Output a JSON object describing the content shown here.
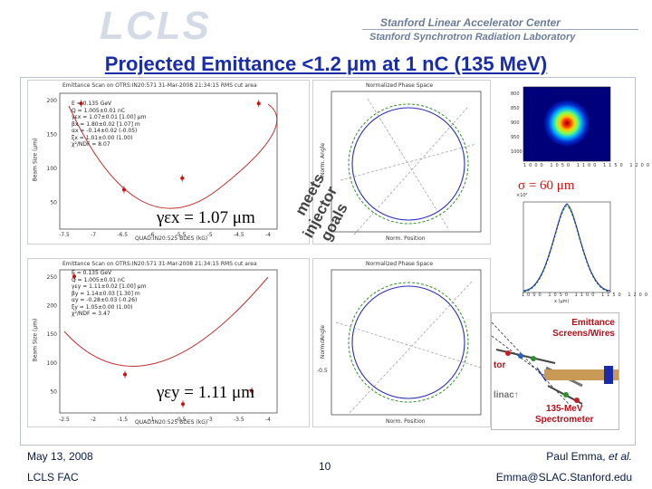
{
  "header": {
    "logo_text": "LCLS",
    "org_line1": "Stanford Linear Accelerator Center",
    "org_line2": "Stanford Synchrotron Radiation Laboratory"
  },
  "title": "Projected Emittance <1.2 μm at 1 nC (135 MeV)",
  "scan_x": {
    "plot_title": "Emittance Scan on OTRS:IN20:571 31-Mar-2008 21:34:15 RMS cut area",
    "ylabel": "Beam Size (μm)",
    "xlabel": "QUAD:IN20:525 BDES (kG)",
    "yticks": [
      "200",
      "150",
      "100",
      "50"
    ],
    "xticks": [
      "-7.5",
      "-7",
      "-6.5",
      "-6",
      "-5.5",
      "-5",
      "-4.5",
      "-4"
    ],
    "fit_text": "E = 0.135 GeV\nQ = 1.005±0.01 nC\nγεx = 1.07±0.01 [1.00] μm\nβx = 1.80±0.02 [1.07] m\nαx = -0.14±0.02 (-0.05)\nξx = 1.01±0.00 (1.00)\nχ²/NDF = 8.07",
    "points": [
      {
        "x": -7.25,
        "y": 185
      },
      {
        "x": -6.55,
        "y": 58
      },
      {
        "x": -5.6,
        "y": 75
      },
      {
        "x": -4.35,
        "y": 185
      }
    ],
    "ylim": [
      0,
      200
    ],
    "xlim": [
      -7.6,
      -4.05
    ],
    "emittance_label": "γεx = 1.07 μm"
  },
  "scan_y": {
    "plot_title": "Emittance Scan on OTRS:IN20:571 31-Mar-2008 21:34:15 RMS cut area",
    "ylabel": "Beam Size (μm)",
    "xlabel": "QUAD:IN20:525 BDES (kG)",
    "yticks": [
      "250",
      "200",
      "150",
      "100",
      "50"
    ],
    "xticks": [
      "-2.5",
      "-2",
      "-1.5",
      "-1",
      "-0.5",
      "-3",
      "-3.5",
      "-4"
    ],
    "fit_text": "E = 0.135 GeV\nQ = 1.005±0.01 nC\nγεy = 1.11±0.02 [1.00] μm\nβy = 1.14±0.03 [1.30] m\nαy = -0.28±0.03 (-0.26)\nξy = 1.05±0.00 (1.00)\nχ²/NDF = 3.47",
    "points": [
      {
        "x": -2.35,
        "y": 70
      },
      {
        "x": -1.55,
        "y": 16
      },
      {
        "x": -0.6,
        "y": 40
      },
      {
        "x": -3.05,
        "y": 248
      }
    ],
    "emittance_label": "γεy = 1.11 μm"
  },
  "phase_top": {
    "title": "Normalized Phase Space",
    "ylabel": "Norm. Angle",
    "xlabel": "Norm. Position"
  },
  "phase_bottom": {
    "title": "Normalized Phase Space",
    "ylabel": "Norm. Angle",
    "xlabel": "Norm. Position",
    "yticks": [
      "0",
      "-0.5"
    ]
  },
  "beam_image": {
    "ticks": [
      "1000",
      "1050",
      "1100",
      "1150",
      "1200"
    ],
    "yticks": [
      "800",
      "850",
      "900",
      "950",
      "1000"
    ]
  },
  "sigma_label": "σ = 60 μm",
  "profile": {
    "exp_label": "×10⁴",
    "ticks": [
      "1000",
      "1050",
      "1100",
      "1150",
      "1200"
    ],
    "xlabel": "x (μm)"
  },
  "rotated_note": [
    "meets",
    "injector",
    "goals"
  ],
  "diagram": {
    "screens": "Emittance\nScreens/Wires",
    "tor": "tor",
    "linac": "linac↑",
    "spectrometer": "135-MeV\nSpectrometer"
  },
  "footer": {
    "date": "May 13, 2008",
    "venue": "LCLS FAC",
    "page": "10",
    "author": "Paul Emma, et al.",
    "email": "Emma@SLAC.Stanford.edu"
  },
  "colors": {
    "title": "#1a2da8",
    "red": "#d01010",
    "blue": "#1a2aa8",
    "footer": "#0a1a4a"
  }
}
